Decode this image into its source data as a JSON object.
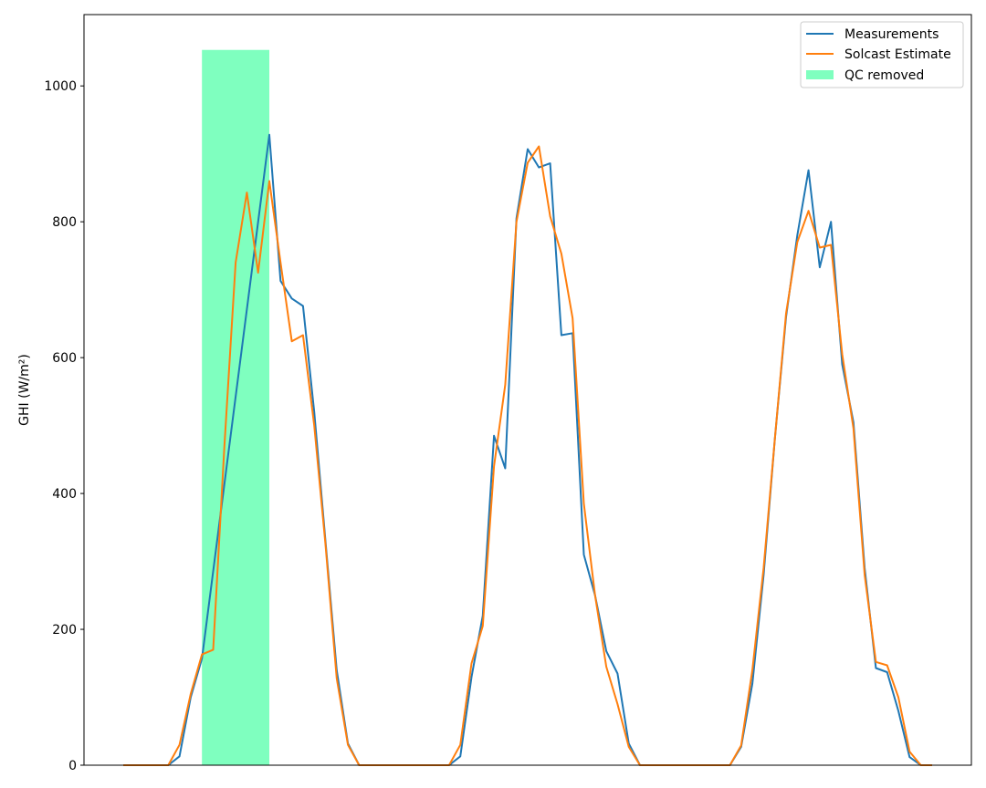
{
  "chart_data": {
    "type": "line",
    "title": "",
    "xlabel": "",
    "ylabel": "GHI (W/m²)",
    "xlim": [
      -3.5,
      75.5
    ],
    "ylim": [
      0,
      1105
    ],
    "y_ticks": [
      0,
      200,
      400,
      600,
      800,
      1000
    ],
    "x_ticks": [],
    "grid": false,
    "legend": {
      "placement": "top-right",
      "entries": [
        "Measurements",
        "Solcast Estimate",
        "QC removed"
      ]
    },
    "colors": {
      "measurements": "#1f77b4",
      "estimate": "#ff7f0e",
      "qc_removed": "#7fffbf"
    },
    "qc_removed_span": {
      "x_start": 7,
      "x_end": 13,
      "y_top": 1053
    },
    "series": [
      {
        "name": "Measurements",
        "x": [
          0,
          1,
          2,
          3,
          4,
          5,
          6,
          7,
          13,
          14,
          15,
          16,
          17,
          18,
          19,
          20,
          21,
          22,
          23,
          24,
          25,
          26,
          27,
          28,
          29,
          30,
          31,
          32,
          33,
          34,
          35,
          36,
          37,
          38,
          39,
          40,
          41,
          42,
          43,
          44,
          45,
          46,
          47,
          48,
          49,
          50,
          51,
          52,
          53,
          54,
          55,
          56,
          57,
          58,
          59,
          60,
          61,
          62,
          63,
          64,
          65,
          66,
          67,
          68,
          69,
          70,
          71,
          72
        ],
        "y": [
          0,
          0,
          0,
          0,
          0,
          13,
          100,
          157,
          928,
          713,
          687,
          676,
          520,
          330,
          140,
          32,
          0,
          0,
          0,
          0,
          0,
          0,
          0,
          0,
          0,
          13,
          130,
          220,
          485,
          437,
          805,
          907,
          880,
          886,
          633,
          636,
          310,
          250,
          168,
          135,
          32,
          0,
          0,
          0,
          0,
          0,
          0,
          0,
          0,
          0,
          27,
          120,
          280,
          480,
          660,
          780,
          876,
          733,
          800,
          590,
          505,
          290,
          143,
          137,
          80,
          12,
          0,
          0
        ]
      },
      {
        "name": "Solcast Estimate",
        "x": [
          0,
          1,
          2,
          3,
          4,
          5,
          6,
          7,
          8,
          9,
          10,
          11,
          12,
          13,
          14,
          15,
          16,
          17,
          18,
          19,
          20,
          21,
          22,
          23,
          24,
          25,
          26,
          27,
          28,
          29,
          30,
          31,
          32,
          33,
          34,
          35,
          36,
          37,
          38,
          39,
          40,
          41,
          42,
          43,
          44,
          45,
          46,
          47,
          48,
          49,
          50,
          51,
          52,
          53,
          54,
          55,
          56,
          57,
          58,
          59,
          60,
          61,
          62,
          63,
          64,
          65,
          66,
          67,
          68,
          69,
          70,
          71,
          72
        ],
        "y": [
          0,
          0,
          0,
          0,
          0,
          30,
          105,
          163,
          170,
          470,
          740,
          843,
          725,
          860,
          740,
          624,
          633,
          500,
          325,
          128,
          30,
          0,
          0,
          0,
          0,
          0,
          0,
          0,
          0,
          0,
          30,
          150,
          205,
          440,
          560,
          800,
          887,
          911,
          808,
          753,
          658,
          385,
          250,
          145,
          90,
          27,
          0,
          0,
          0,
          0,
          0,
          0,
          0,
          0,
          0,
          29,
          140,
          290,
          480,
          665,
          770,
          816,
          762,
          766,
          605,
          496,
          280,
          152,
          147,
          100,
          20,
          0,
          0
        ]
      }
    ]
  }
}
